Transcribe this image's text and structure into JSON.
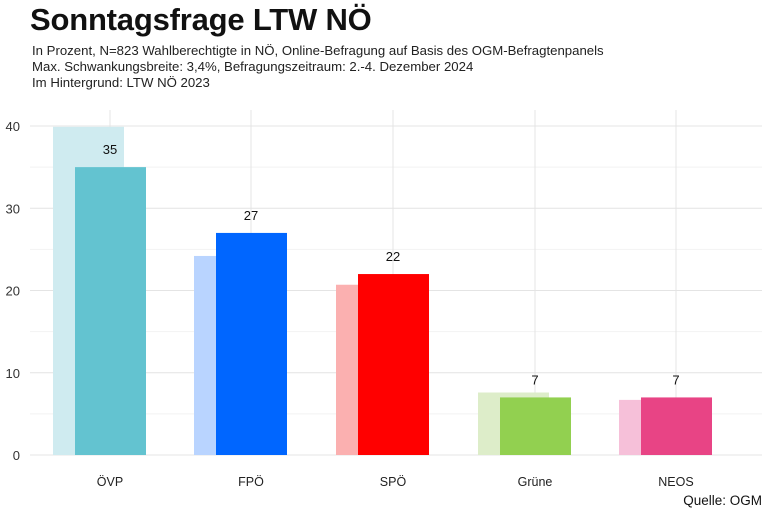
{
  "header": {
    "title": "Sonntagsfrage LTW NÖ",
    "subtitle_lines": [
      "In Prozent, N=823 Wahlberechtigte in NÖ, Online-Befragung auf Basis des OGM-Befragtenpanels",
      "Max. Schwankungsbreite: 3,4%, Befragungszeitraum: 2.-4. Dezember 2024",
      "Im Hintergrund: LTW NÖ 2023"
    ]
  },
  "caption": "Quelle: OGM",
  "chart_data": {
    "type": "bar",
    "categories": [
      "ÖVP",
      "FPÖ",
      "SPÖ",
      "Grüne",
      "NEOS"
    ],
    "series": [
      {
        "values": [
          39.9,
          24.2,
          20.7,
          7.6,
          6.7
        ],
        "colors": [
          "#cfebf0",
          "#b9d4ff",
          "#fbb0b0",
          "#ddedc9",
          "#f6c0d9"
        ],
        "role": "background"
      },
      {
        "values": [
          35,
          27,
          22,
          7,
          7
        ],
        "colors": [
          "#63c3d0",
          "#0066ff",
          "#ff0000",
          "#92d050",
          "#e84485"
        ],
        "role": "foreground"
      }
    ],
    "data_labels": [
      "35",
      "27",
      "22",
      "7",
      "7"
    ],
    "ylim": [
      0,
      40
    ],
    "yticks": [
      0,
      10,
      20,
      30,
      40
    ],
    "grid": true,
    "legend": "none"
  }
}
